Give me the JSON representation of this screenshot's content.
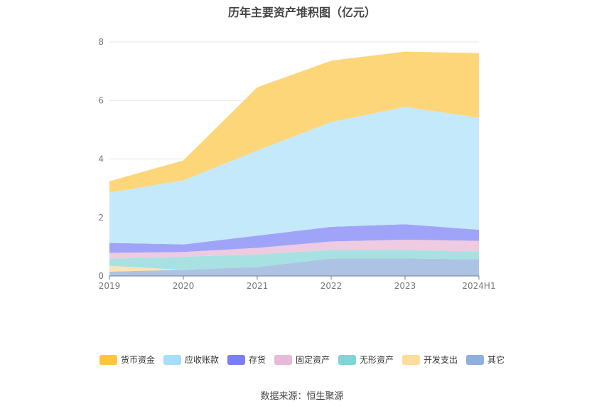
{
  "chart_data": {
    "type": "area",
    "title": "历年主要资产堆积图（亿元）",
    "categories": [
      "2019",
      "2020",
      "2021",
      "2022",
      "2023",
      "2024H1"
    ],
    "ylim": [
      0,
      8
    ],
    "yticks": [
      "0",
      "2",
      "4",
      "6",
      "8"
    ],
    "grid": true,
    "legend_position": "bottom",
    "stacked": true,
    "series": [
      {
        "name": "其它",
        "color": "#8fb0dc",
        "fill": "#adc3e3",
        "values": [
          0.15,
          0.21,
          0.31,
          0.6,
          0.6,
          0.57
        ]
      },
      {
        "name": "开发支出",
        "color": "#fedc9b",
        "fill": "#fde2b4",
        "values": [
          0.2,
          0,
          0,
          0,
          0,
          0
        ]
      },
      {
        "name": "无形资产",
        "color": "#7fd6d6",
        "fill": "#a8e1e1",
        "values": [
          0.24,
          0.45,
          0.43,
          0.29,
          0.29,
          0.27
        ]
      },
      {
        "name": "固定资产",
        "color": "#e8b9d8",
        "fill": "#eecbe1",
        "values": [
          0.2,
          0.16,
          0.22,
          0.29,
          0.35,
          0.36
        ]
      },
      {
        "name": "存货",
        "color": "#7b7ff5",
        "fill": "#a0a4f8",
        "values": [
          0.34,
          0.26,
          0.42,
          0.5,
          0.53,
          0.38
        ]
      },
      {
        "name": "应收账款",
        "color": "#a5dff9",
        "fill": "#c4e9fb",
        "values": [
          1.72,
          2.19,
          2.91,
          3.58,
          4.01,
          3.83
        ]
      },
      {
        "name": "货币资金",
        "color": "#ffc53d",
        "fill": "#fed67a",
        "values": [
          0.39,
          0.68,
          2.16,
          2.1,
          1.89,
          2.21
        ]
      }
    ],
    "legend_order": [
      6,
      5,
      4,
      3,
      2,
      1,
      0
    ]
  },
  "source": "数据来源：恒生聚源"
}
